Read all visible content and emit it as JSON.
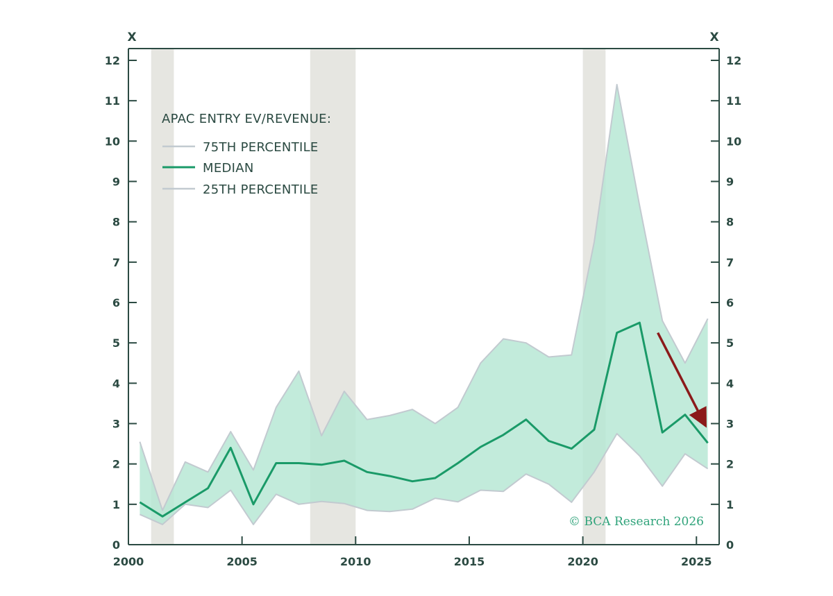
{
  "chart_data": {
    "type": "area",
    "title": "",
    "xlabel": "",
    "ylabel": "X",
    "ylabel_right": "X",
    "xlim": [
      2000,
      2026
    ],
    "ylim": [
      0,
      12
    ],
    "x_ticks": [
      2000,
      2005,
      2010,
      2015,
      2020,
      2025
    ],
    "y_ticks": [
      0,
      1,
      2,
      3,
      4,
      5,
      6,
      7,
      8,
      9,
      10,
      11,
      12
    ],
    "grid": false,
    "legend": {
      "title": "APAC ENTRY EV/REVENUE:",
      "placement": "top-left",
      "entries": [
        "75TH PERCENTILE",
        "MEDIAN",
        "25TH PERCENTILE"
      ]
    },
    "shaded_periods": [
      [
        2001.0,
        2002.0
      ],
      [
        2008.0,
        2010.0
      ],
      [
        2020.0,
        2021.0
      ]
    ],
    "series": [
      {
        "name": "75TH PERCENTILE",
        "x": [
          2000.5,
          2001.5,
          2002.5,
          2003.5,
          2004.5,
          2005.5,
          2006.5,
          2007.5,
          2008.5,
          2009.5,
          2010.5,
          2011.5,
          2012.5,
          2013.5,
          2014.5,
          2015.5,
          2016.5,
          2017.5,
          2018.5,
          2019.5,
          2020.5,
          2021.5,
          2022.5,
          2023.5,
          2024.5,
          2025.5
        ],
        "values": [
          2.55,
          0.85,
          2.05,
          1.8,
          2.8,
          1.85,
          3.4,
          4.3,
          2.7,
          3.8,
          3.1,
          3.2,
          3.35,
          3.0,
          3.4,
          4.5,
          5.1,
          5.0,
          4.65,
          4.7,
          7.5,
          11.4,
          8.4,
          5.55,
          4.5,
          5.6
        ]
      },
      {
        "name": "MEDIAN",
        "x": [
          2000.5,
          2001.5,
          2002.5,
          2003.5,
          2004.5,
          2005.5,
          2006.5,
          2007.5,
          2008.5,
          2009.5,
          2010.5,
          2011.5,
          2012.5,
          2013.5,
          2014.5,
          2015.5,
          2016.5,
          2017.5,
          2018.5,
          2019.5,
          2020.5,
          2021.5,
          2022.5,
          2023.5,
          2024.5,
          2025.5
        ],
        "values": [
          1.05,
          0.7,
          1.05,
          1.4,
          2.4,
          1.0,
          2.02,
          2.02,
          1.98,
          2.08,
          1.8,
          1.7,
          1.57,
          1.65,
          2.02,
          2.42,
          2.72,
          3.1,
          2.57,
          2.38,
          2.85,
          5.25,
          5.5,
          2.78,
          3.22,
          2.52
        ]
      },
      {
        "name": "25TH PERCENTILE",
        "x": [
          2000.5,
          2001.5,
          2002.5,
          2003.5,
          2004.5,
          2005.5,
          2006.5,
          2007.5,
          2008.5,
          2009.5,
          2010.5,
          2011.5,
          2012.5,
          2013.5,
          2014.5,
          2015.5,
          2016.5,
          2017.5,
          2018.5,
          2019.5,
          2020.5,
          2021.5,
          2022.5,
          2023.5,
          2024.5,
          2025.5
        ],
        "values": [
          0.75,
          0.5,
          1.0,
          0.92,
          1.35,
          0.5,
          1.25,
          1.0,
          1.07,
          1.02,
          0.85,
          0.82,
          0.88,
          1.15,
          1.06,
          1.35,
          1.32,
          1.75,
          1.5,
          1.05,
          1.8,
          2.75,
          2.2,
          1.45,
          2.25,
          1.88
        ]
      }
    ],
    "annotations": [
      {
        "type": "arrow",
        "from": [
          2023.3,
          5.25
        ],
        "to": [
          2025.4,
          2.95
        ],
        "color": "#8b1a1a"
      }
    ],
    "watermark": "© BCA Research 2026"
  },
  "colors": {
    "axis": "#2b4a42",
    "band_fill": "#b4e6d3",
    "band_edge": "#c2cad0",
    "median": "#1a9a68",
    "shade": "#e6e6e1",
    "arrow": "#8b1a1a",
    "watermark": "#2fa37a",
    "text": "#2b4a42"
  }
}
